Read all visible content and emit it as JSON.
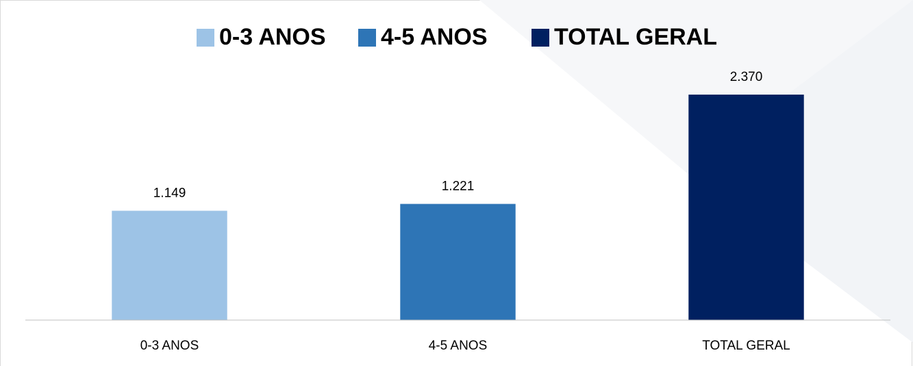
{
  "chart_data": {
    "type": "bar",
    "categories": [
      "0-3 ANOS",
      "4-5 ANOS",
      "TOTAL GERAL"
    ],
    "series": [
      {
        "name": "0-3 ANOS",
        "color": "#9dc3e6",
        "values": [
          1149,
          null,
          null
        ],
        "value_labels": [
          "1.149",
          null,
          null
        ]
      },
      {
        "name": "4-5 ANOS",
        "color": "#2e75b6",
        "values": [
          null,
          1221,
          null
        ],
        "value_labels": [
          null,
          "1.221",
          null
        ]
      },
      {
        "name": "TOTAL GERAL",
        "color": "#002060",
        "values": [
          null,
          null,
          2370
        ],
        "value_labels": [
          null,
          null,
          "2.370"
        ]
      }
    ],
    "ylim": [
      0,
      2500
    ],
    "legend": "top"
  }
}
